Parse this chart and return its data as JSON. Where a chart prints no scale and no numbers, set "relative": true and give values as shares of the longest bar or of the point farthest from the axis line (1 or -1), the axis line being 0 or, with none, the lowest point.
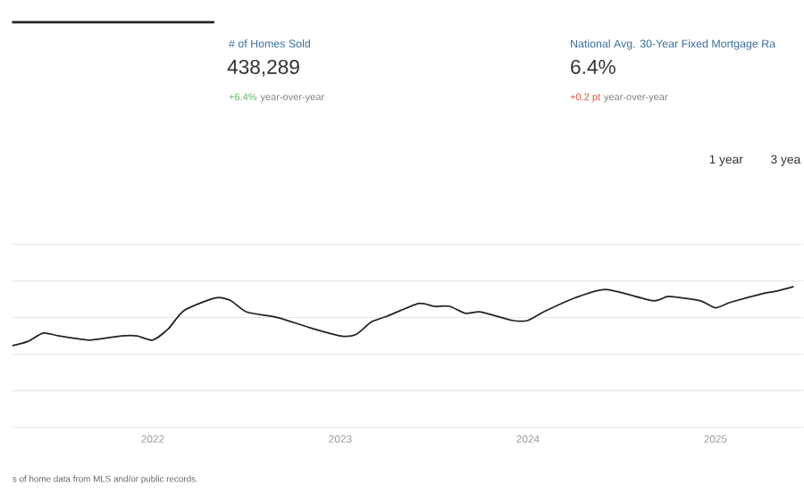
{
  "chart_data": {
    "type": "line",
    "relative": true,
    "grid": "y",
    "x": [
      "2021-04",
      "2021-05",
      "2021-06",
      "2021-07",
      "2021-09",
      "2021-11",
      "2021-12",
      "2022-01",
      "2022-02",
      "2022-03",
      "2022-05",
      "2022-06",
      "2022-07",
      "2022-09",
      "2022-11",
      "2023-01",
      "2023-02",
      "2023-03",
      "2023-04",
      "2023-06",
      "2023-07",
      "2023-08",
      "2023-09",
      "2023-10",
      "2023-12",
      "2024-01",
      "2024-02",
      "2024-04",
      "2024-06",
      "2024-09",
      "2024-10",
      "2024-12",
      "2025-01",
      "2025-02",
      "2025-04",
      "2025-05",
      "2025-06"
    ],
    "series": [
      {
        "color": "#222222",
        "values": [
          0.58,
          0.61,
          0.67,
          0.65,
          0.62,
          0.65,
          0.65,
          0.62,
          0.7,
          0.83,
          0.92,
          0.9,
          0.82,
          0.78,
          0.71,
          0.65,
          0.66,
          0.75,
          0.79,
          0.88,
          0.86,
          0.86,
          0.81,
          0.82,
          0.76,
          0.76,
          0.82,
          0.92,
          0.98,
          0.9,
          0.93,
          0.9,
          0.85,
          0.89,
          0.95,
          0.97,
          1.0
        ]
      }
    ],
    "xlim": [
      "2021-04",
      "2025-06-20"
    ],
    "xticks": [
      "2022",
      "2023",
      "2024",
      "2025"
    ],
    "annotations": [
      "# of Homes Sold",
      "438,289",
      "+6.4%",
      "year-over-year",
      "National Avg. 30-Year Fixed Mortgage Ra",
      "6.4%",
      "+0.2 pt",
      "year-over-year",
      "1 year",
      "3 yea",
      "s of home data from MLS and/or public records."
    ]
  }
}
